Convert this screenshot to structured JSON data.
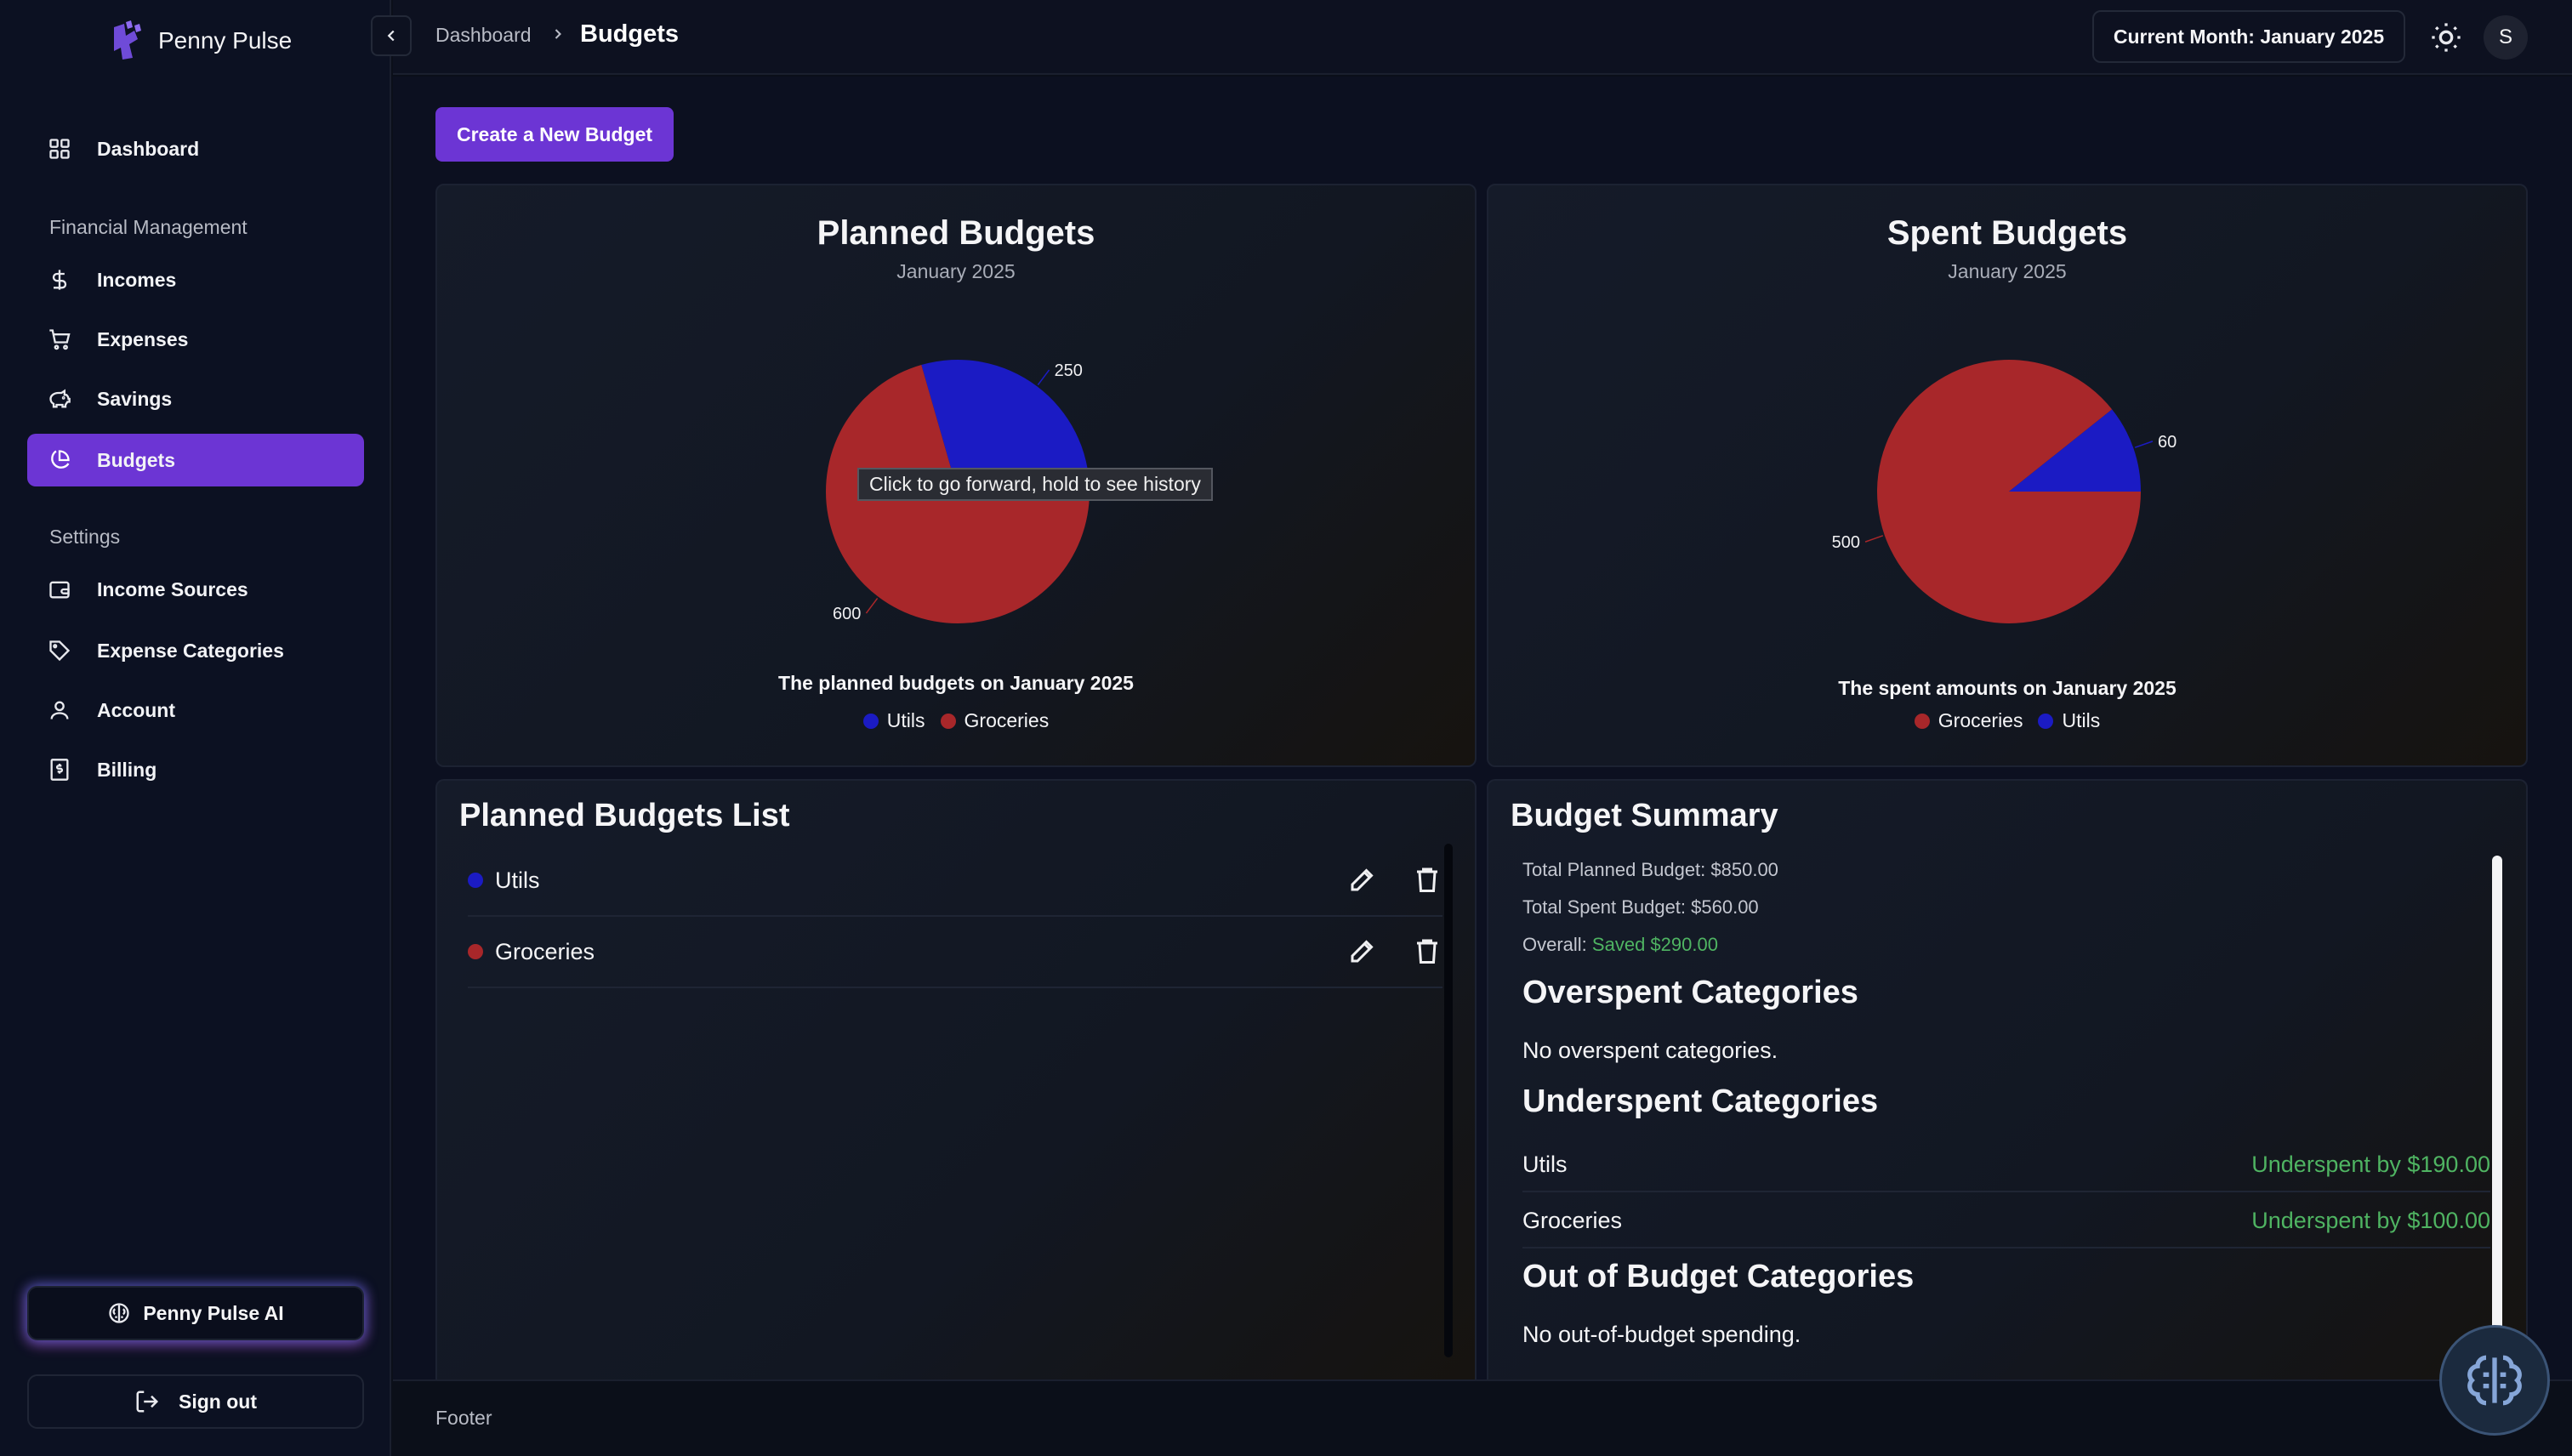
{
  "app": {
    "name": "Penny Pulse"
  },
  "sidebar": {
    "dashboard": "Dashboard",
    "group_financial": "Financial Management",
    "incomes": "Incomes",
    "expenses": "Expenses",
    "savings": "Savings",
    "budgets": "Budgets",
    "group_settings": "Settings",
    "income_sources": "Income Sources",
    "expense_categories": "Expense Categories",
    "account": "Account",
    "billing": "Billing",
    "ai_button": "Penny Pulse AI",
    "sign_out": "Sign out"
  },
  "header": {
    "breadcrumb_root": "Dashboard",
    "breadcrumb_current": "Budgets",
    "current_month": "Current Month: January 2025",
    "avatar_initial": "S"
  },
  "main": {
    "create_button": "Create a New Budget",
    "tooltip": "Click to go forward, hold to see history"
  },
  "planned_chart": {
    "title": "Planned Budgets",
    "subtitle": "January 2025",
    "caption": "The planned budgets on January 2025"
  },
  "spent_chart": {
    "title": "Spent Budgets",
    "subtitle": "January 2025",
    "caption": "The spent amounts on January 2025"
  },
  "chart_data": [
    {
      "type": "pie",
      "title": "Planned Budgets",
      "categories": [
        "Utils",
        "Groceries"
      ],
      "values": [
        250,
        600
      ],
      "colors": [
        "#1b1bc4",
        "#a8272a"
      ],
      "legend": "bottom"
    },
    {
      "type": "pie",
      "title": "Spent Budgets",
      "categories": [
        "Groceries",
        "Utils"
      ],
      "values": [
        500,
        60
      ],
      "colors": [
        "#a8272a",
        "#1b1bc4"
      ],
      "legend": "bottom"
    }
  ],
  "planned_list": {
    "title": "Planned Budgets List",
    "items": [
      {
        "label": "Utils",
        "color": "#1b1bc4"
      },
      {
        "label": "Groceries",
        "color": "#a8272a"
      }
    ]
  },
  "summary": {
    "title": "Budget Summary",
    "total_planned": "Total Planned Budget: $850.00",
    "total_spent": "Total Spent Budget: $560.00",
    "overall_label": "Overall:",
    "overall_value": "Saved $290.00",
    "overspent_heading": "Overspent Categories",
    "overspent_text": "No overspent categories.",
    "underspent_heading": "Underspent Categories",
    "underspent": [
      {
        "name": "Utils",
        "value": "Underspent by $190.00"
      },
      {
        "name": "Groceries",
        "value": "Underspent by $100.00"
      }
    ],
    "out_heading": "Out of Budget Categories",
    "out_text": "No out-of-budget spending."
  },
  "footer": {
    "text": "Footer"
  }
}
